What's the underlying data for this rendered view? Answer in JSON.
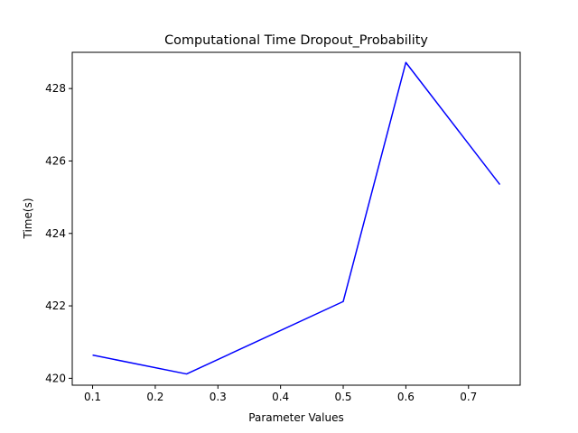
{
  "chart_data": {
    "type": "line",
    "title": "Computational Time Dropout_Probability",
    "xlabel": "Parameter Values",
    "ylabel": "Time(s)",
    "xlim": [
      0.0675,
      0.7825
    ],
    "ylim": [
      419.81,
      429.0
    ],
    "xticks": [
      0.1,
      0.2,
      0.3,
      0.4,
      0.5,
      0.6,
      0.7
    ],
    "xtick_labels": [
      "0.1",
      "0.2",
      "0.3",
      "0.4",
      "0.5",
      "0.6",
      "0.7"
    ],
    "yticks": [
      420,
      422,
      424,
      426,
      428
    ],
    "ytick_labels": [
      "420",
      "422",
      "424",
      "426",
      "428"
    ],
    "grid": false,
    "series": [
      {
        "color": "#0000ff",
        "x": [
          0.1,
          0.25,
          0.5,
          0.6,
          0.75
        ],
        "y": [
          420.64,
          420.12,
          422.12,
          428.72,
          425.35
        ]
      }
    ]
  }
}
